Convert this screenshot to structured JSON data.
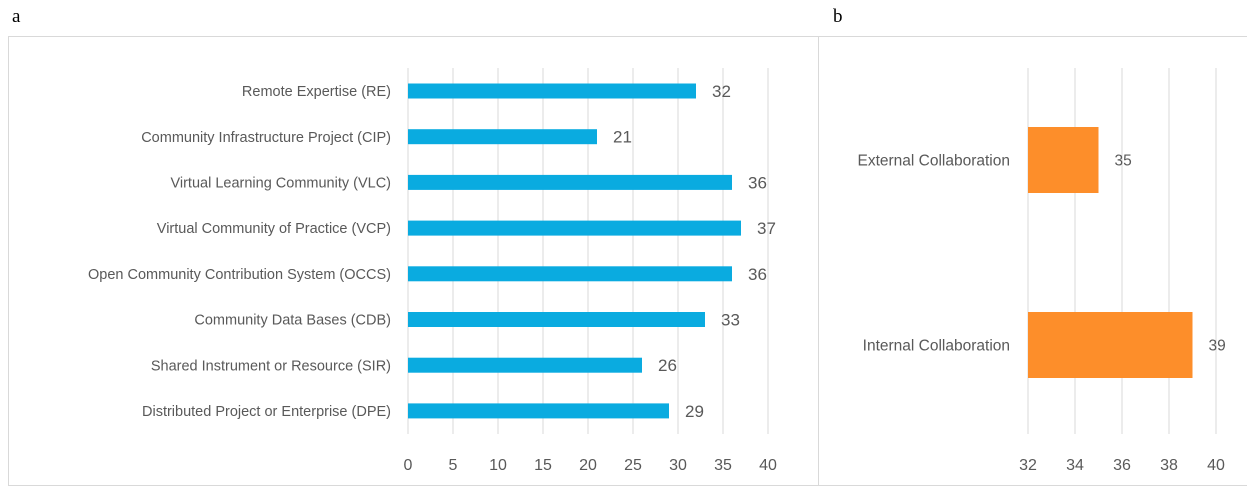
{
  "panels": {
    "a": "a",
    "b": "b"
  },
  "chart_data": [
    {
      "type": "bar",
      "orientation": "horizontal",
      "categories": [
        "Remote Expertise (RE)",
        "Community Infrastructure Project (CIP)",
        "Virtual Learning Community (VLC)",
        "Virtual Community of Practice (VCP)",
        "Open Community Contribution System (OCCS)",
        "Community Data Bases (CDB)",
        "Shared Instrument or Resource (SIR)",
        "Distributed Project or Enterprise (DPE)"
      ],
      "values": [
        32,
        21,
        36,
        37,
        36,
        33,
        26,
        29
      ],
      "xlim": [
        0,
        40
      ],
      "xticks": [
        0,
        5,
        10,
        15,
        20,
        25,
        30,
        35,
        40
      ],
      "grid": "vertical",
      "color": "#0aabe0",
      "data_labels": true,
      "title": "",
      "xlabel": "",
      "ylabel": ""
    },
    {
      "type": "bar",
      "orientation": "horizontal",
      "categories": [
        "External Collaboration",
        "Internal Collaboration"
      ],
      "values": [
        35,
        39
      ],
      "xlim": [
        32,
        40
      ],
      "xticks": [
        32,
        34,
        36,
        38,
        40
      ],
      "grid": "vertical",
      "color": "#fd8e2a",
      "data_labels": true,
      "title": "",
      "xlabel": "",
      "ylabel": ""
    }
  ]
}
